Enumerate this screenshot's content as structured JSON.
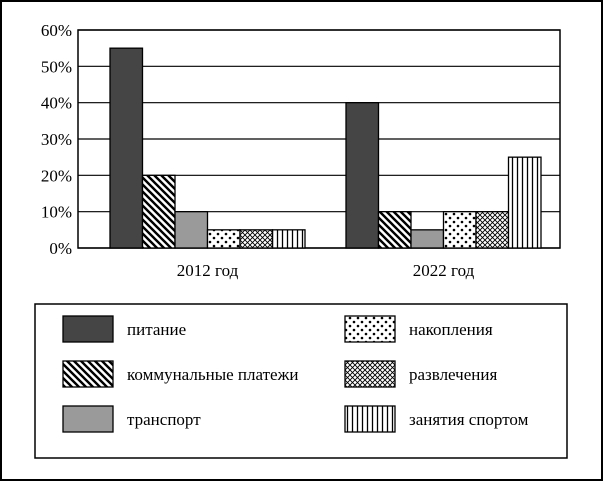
{
  "chart_data": {
    "type": "bar",
    "title": "",
    "xlabel": "",
    "ylabel": "",
    "ylim": [
      0,
      60
    ],
    "y_ticks": [
      0,
      10,
      20,
      30,
      40,
      50,
      60
    ],
    "y_tick_format": "{v}%",
    "grid": "horizontal lines at major ticks",
    "categories": [
      "2012 год",
      "2022 год"
    ],
    "legend_position": "bottom",
    "series": [
      {
        "name": "питание",
        "values": [
          55,
          40
        ],
        "pattern": "solid-dark",
        "color": "#454545"
      },
      {
        "name": "коммунальные платежи",
        "values": [
          20,
          10
        ],
        "pattern": "diagonal-lines",
        "color": "#000000"
      },
      {
        "name": "транспорт",
        "values": [
          10,
          5
        ],
        "pattern": "solid-gray",
        "color": "#9a9a9a"
      },
      {
        "name": "накопления",
        "values": [
          5,
          10
        ],
        "pattern": "dots",
        "color": "#000000"
      },
      {
        "name": "развлечения",
        "values": [
          5,
          10
        ],
        "pattern": "crosshatch",
        "color": "#000000"
      },
      {
        "name": "занятия спортом",
        "values": [
          5,
          25
        ],
        "pattern": "vertical-lines",
        "color": "#000000"
      }
    ]
  }
}
